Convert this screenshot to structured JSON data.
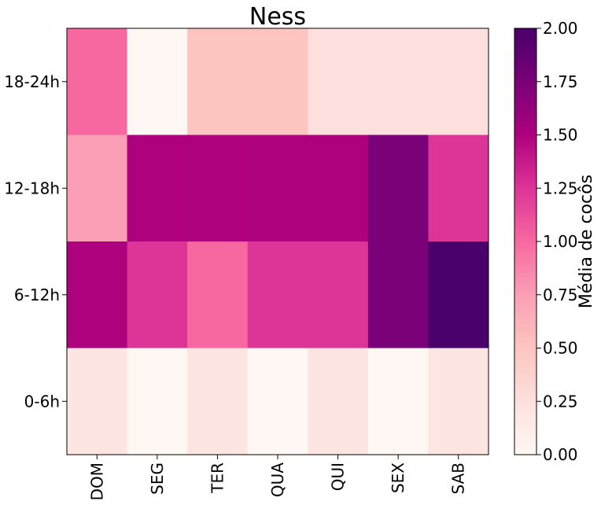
{
  "chart_data": {
    "type": "heatmap",
    "title": "Ness",
    "x_categories": [
      "DOM",
      "SEG",
      "TER",
      "QUA",
      "QUI",
      "SEX",
      "SAB"
    ],
    "y_categories": [
      "18-24h",
      "12-18h",
      "6-12h",
      "0-6h"
    ],
    "values": [
      [
        1.0,
        0.0,
        0.5,
        0.5,
        0.25,
        0.25,
        0.25
      ],
      [
        0.75,
        1.5,
        1.5,
        1.5,
        1.5,
        1.75,
        1.25
      ],
      [
        1.5,
        1.25,
        1.0,
        1.25,
        1.25,
        1.75,
        2.0
      ],
      [
        0.2,
        0.0,
        0.2,
        0.0,
        0.2,
        0.0,
        0.2
      ]
    ],
    "colorbar": {
      "label": "Média de cocôs",
      "min": 0,
      "max": 2,
      "ticks": [
        "0.00",
        "0.25",
        "0.50",
        "0.75",
        "1.00",
        "1.25",
        "1.50",
        "1.75",
        "2.00"
      ]
    },
    "colormap": [
      "#fff7f3",
      "#fde0dd",
      "#fcc5c0",
      "#fa9fb5",
      "#f768a1",
      "#dd3497",
      "#ae017e",
      "#7a0177",
      "#49006a"
    ],
    "grid": false
  }
}
